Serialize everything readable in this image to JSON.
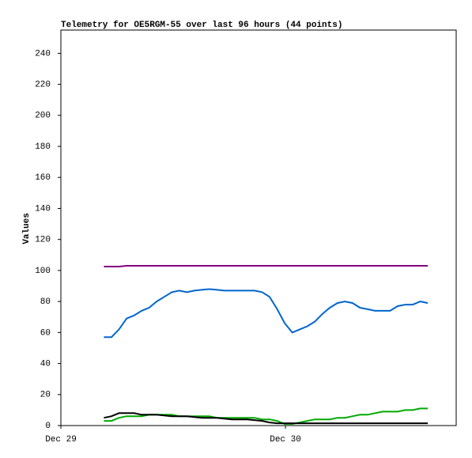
{
  "chart_data": {
    "type": "line",
    "title": "Telemetry for OE5RGM-55 over last 96 hours (44 points)",
    "y_label": "Values",
    "x": [
      4.6,
      5.41,
      6.21,
      7.02,
      7.82,
      8.63,
      9.43,
      10.24,
      11.04,
      11.85,
      12.65,
      13.46,
      14.26,
      15.07,
      15.87,
      16.68,
      17.48,
      18.29,
      19.09,
      19.9,
      20.7,
      21.51,
      22.31,
      23.12,
      23.92,
      24.73,
      25.53,
      26.34,
      27.14,
      27.95,
      28.75,
      29.56,
      30.36,
      31.17,
      31.97,
      32.78,
      33.58,
      34.39,
      35.19,
      36.0,
      36.8,
      37.61,
      38.41,
      39.22
    ],
    "xlim": [
      0,
      42.25
    ],
    "xticks": [
      {
        "value": 0,
        "label": "Dec 29"
      },
      {
        "value": 24,
        "label": "Dec 30"
      }
    ],
    "ylim": [
      0,
      255
    ],
    "yticks": [
      0,
      20,
      40,
      60,
      80,
      100,
      120,
      140,
      160,
      180,
      200,
      220,
      240
    ],
    "series": [
      {
        "color": "#800080",
        "values": [
          102.5,
          102.5,
          102.5,
          103,
          103,
          103,
          103,
          103,
          103,
          103,
          103,
          103,
          103,
          103,
          103,
          103,
          103,
          103,
          103,
          103,
          103,
          103,
          103,
          103,
          103,
          103,
          103,
          103,
          103,
          103,
          103,
          103,
          103,
          103,
          103,
          103,
          103,
          103,
          103,
          103,
          103,
          103,
          103,
          103
        ]
      },
      {
        "color": "#0066cc",
        "values": [
          57,
          57,
          62,
          69,
          71,
          74,
          76,
          80,
          83,
          86,
          87,
          86,
          87,
          87.5,
          88,
          87.5,
          87,
          87,
          87,
          87,
          87,
          86,
          83,
          75,
          66,
          60,
          62,
          64,
          67,
          72,
          76,
          79,
          80,
          79,
          76,
          75,
          74,
          74,
          74,
          77,
          78,
          78,
          80,
          79
        ]
      },
      {
        "color": "#00aa00",
        "values": [
          3,
          3,
          5,
          6,
          6,
          6,
          7,
          7,
          7,
          7,
          6,
          6,
          6,
          6,
          6,
          5,
          5,
          5,
          5,
          5,
          5,
          4,
          4,
          3,
          1,
          1,
          2,
          3,
          4,
          4,
          4,
          5,
          5,
          6,
          7,
          7,
          8,
          9,
          9,
          9,
          10,
          10,
          11,
          11
        ]
      },
      {
        "color": "#000000",
        "values": [
          5,
          6,
          8,
          8,
          8,
          7,
          7,
          7,
          6.5,
          6,
          6,
          6,
          5.5,
          5,
          5,
          5,
          4.5,
          4,
          4,
          4,
          3.5,
          3,
          2,
          1.5,
          1.5,
          1.5,
          1.5,
          1.5,
          1.5,
          1.5,
          1.5,
          1.5,
          1.5,
          1.5,
          1.5,
          1.5,
          1.5,
          1.5,
          1.5,
          1.5,
          1.5,
          1.5,
          1.5,
          1.5
        ]
      }
    ]
  }
}
